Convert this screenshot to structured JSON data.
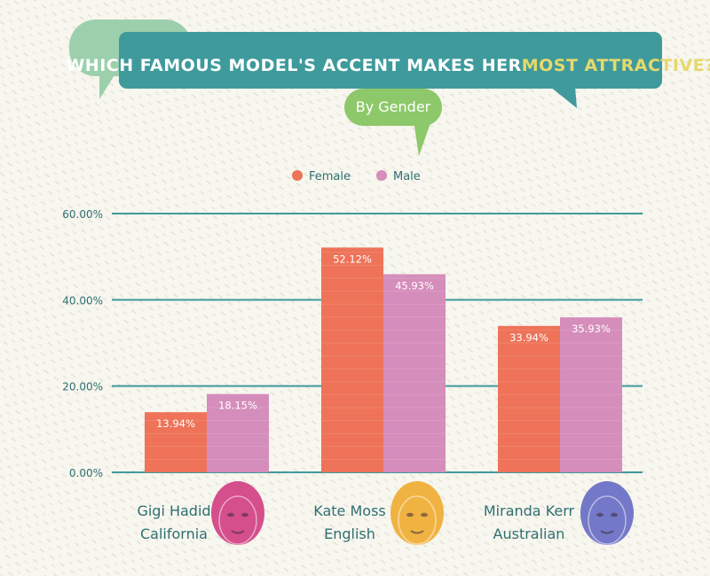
{
  "header": {
    "title_main": "WHICH FAMOUS MODEL'S ACCENT MAKES HER ",
    "title_highlight": "MOST ATTRACTIVE?",
    "subtitle": "By Gender"
  },
  "colors": {
    "female": "#ee7358",
    "male": "#d58dbb",
    "teal": "#3f9a9c",
    "light_green": "#9cd0ac",
    "bright_green": "#8dc86a",
    "axis_text": "#2f6f71",
    "highlight": "#e6d96b"
  },
  "chart_data": {
    "type": "bar",
    "categories": [
      "Gigi Hadid",
      "Kate Moss",
      "Miranda Kerr"
    ],
    "category_subtitles": [
      "California",
      "English",
      "Australian"
    ],
    "series": [
      {
        "name": "Female",
        "values": [
          13.94,
          52.12,
          33.94
        ],
        "labels": [
          "13.94%",
          "52.12%",
          "33.94%"
        ]
      },
      {
        "name": "Male",
        "values": [
          18.15,
          45.93,
          35.93
        ],
        "labels": [
          "18.15%",
          "45.93%",
          "35.93%"
        ]
      }
    ],
    "ylim": [
      0,
      60
    ],
    "yticks": [
      0,
      20,
      40,
      60
    ],
    "ytick_labels": [
      "0.00%",
      "20.00%",
      "40.00%",
      "60.00%"
    ],
    "legend_position": "top-center",
    "grid": true
  },
  "portraits": [
    {
      "icon": "face-portrait-icon",
      "color": "#d44f8c"
    },
    {
      "icon": "face-portrait-icon",
      "color": "#f0b342"
    },
    {
      "icon": "face-portrait-icon",
      "color": "#7478c8"
    }
  ]
}
